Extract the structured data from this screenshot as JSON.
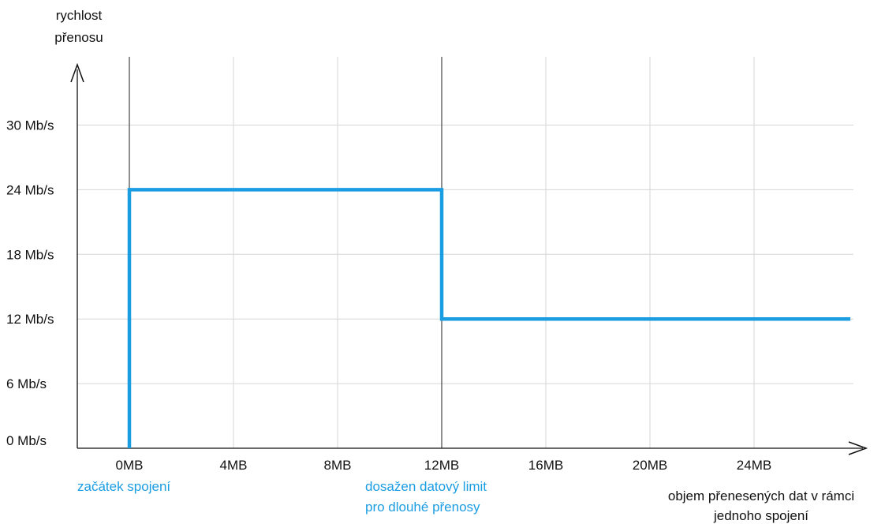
{
  "chart_data": {
    "type": "line",
    "ylabel": [
      "rychlost",
      "přenosu"
    ],
    "xlabel": [
      "objem přenesených dat v rámci",
      "jednoho spojení"
    ],
    "x_ticks": [
      "0MB",
      "4MB",
      "8MB",
      "12MB",
      "16MB",
      "20MB",
      "24MB"
    ],
    "x_tick_values": [
      0,
      4,
      8,
      12,
      16,
      20,
      24
    ],
    "y_ticks": [
      "0 Mb/s",
      "6 Mb/s",
      "12 Mb/s",
      "18 Mb/s",
      "24 Mb/s",
      "30 Mb/s"
    ],
    "y_tick_values": [
      0,
      6,
      12,
      18,
      24,
      30
    ],
    "xlim": [
      -2,
      28
    ],
    "ylim": [
      0,
      36
    ],
    "grid": true,
    "series": [
      {
        "color": "#1b9de2",
        "points": [
          [
            0,
            0
          ],
          [
            0,
            24
          ],
          [
            12,
            24
          ],
          [
            12,
            12
          ],
          [
            27.7,
            12
          ]
        ]
      }
    ],
    "markers": [
      0,
      12
    ],
    "annotations": [
      {
        "x": 0,
        "lines": [
          "začátek spojení"
        ],
        "color": "#1b9de2"
      },
      {
        "x": 12,
        "lines": [
          "dosažen datový limit",
          "pro dlouhé přenosy"
        ],
        "color": "#1b9de2"
      }
    ]
  }
}
